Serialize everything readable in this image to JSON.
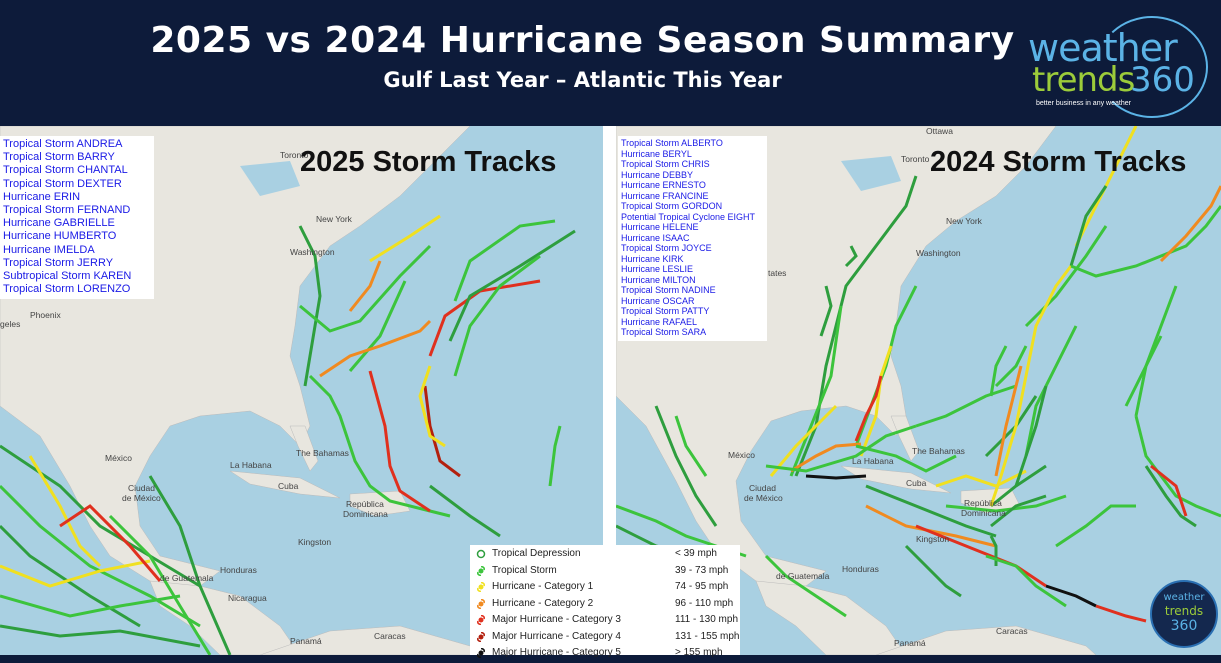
{
  "header": {
    "title": "2025 vs 2024 Hurricane Season Summary",
    "subtitle": "Gulf Last Year – Atlantic This Year"
  },
  "logo": {
    "word1": "weather",
    "word2": "trends",
    "word3": "360",
    "tagline": "better business in any weather"
  },
  "map_2025": {
    "title": "2025 Storm Tracks",
    "storms": [
      "Tropical Storm ANDREA",
      "Tropical Storm BARRY",
      "Tropical Storm CHANTAL",
      "Tropical Storm DEXTER",
      "Hurricane ERIN",
      "Tropical Storm FERNAND",
      "Hurricane GABRIELLE",
      "Hurricane HUMBERTO",
      "Hurricane IMELDA",
      "Tropical Storm JERRY",
      "Subtropical Storm KAREN",
      "Tropical Storm LORENZO"
    ],
    "places": {
      "toronto": "Toronto",
      "newyork": "New York",
      "washington": "Washington",
      "phoenix": "Phoenix",
      "angeles": "geles",
      "mexico": "México",
      "ciudad1": "Ciudad",
      "ciudad2": "de México",
      "guatemala": "de Guatemala",
      "habana": "La Habana",
      "bahamas": "The Bahamas",
      "cuba": "Cuba",
      "kingston": "Kingston",
      "dominicana1": "República",
      "dominicana2": "Dominicana",
      "honduras": "Honduras",
      "nicaragua": "Nicaragua",
      "caracas": "Caracas",
      "panama": "Panamá"
    }
  },
  "map_2024": {
    "title": "2024 Storm Tracks",
    "storms": [
      "Tropical Storm ALBERTO",
      "Hurricane BERYL",
      "Tropical Storm CHRIS",
      "Hurricane DEBBY",
      "Hurricane ERNESTO",
      "Hurricane FRANCINE",
      "Tropical Storm GORDON",
      "Potential Tropical Cyclone EIGHT",
      "Hurricane HELENE",
      "Hurricane ISAAC",
      "Tropical Storm JOYCE",
      "Hurricane KIRK",
      "Hurricane LESLIE",
      "Hurricane MILTON",
      "Tropical Storm NADINE",
      "Hurricane OSCAR",
      "Tropical Storm PATTY",
      "Hurricane RAFAEL",
      "Tropical Storm SARA"
    ],
    "places": {
      "ottawa": "Ottawa",
      "toronto": "Toronto",
      "newyork": "New York",
      "washington": "Washington",
      "states": "tates",
      "mexico": "México",
      "ciudad1": "Ciudad",
      "ciudad2": "de México",
      "guatemala": "de Guatemala",
      "habana": "La Habana",
      "bahamas": "The Bahamas",
      "cuba": "Cuba",
      "dominicana1": "República",
      "dominicana2": "Dominicana",
      "kingston": "Kingston",
      "honduras": "Honduras",
      "caracas": "Caracas",
      "panama": "Panamá"
    }
  },
  "legend": {
    "items": [
      {
        "label": "Tropical Depression",
        "speed": "< 39 mph",
        "color": "#2e9e3e",
        "symbol": "circle"
      },
      {
        "label": "Tropical Storm",
        "speed": "39 - 73 mph",
        "color": "#3cc43c",
        "symbol": "swirl"
      },
      {
        "label": "Hurricane - Category 1",
        "speed": "74 - 95 mph",
        "color": "#f0e020",
        "symbol": "swirl"
      },
      {
        "label": "Hurricane - Category 2",
        "speed": "96 - 110 mph",
        "color": "#f08a20",
        "symbol": "swirl"
      },
      {
        "label": "Major Hurricane - Category 3",
        "speed": "111 - 130 mph",
        "color": "#e0301e",
        "symbol": "swirl"
      },
      {
        "label": "Major Hurricane - Category 4",
        "speed": "131 - 155 mph",
        "color": "#b3200e",
        "symbol": "swirl"
      },
      {
        "label": "Major Hurricane - Category 5",
        "speed": "> 155 mph",
        "color": "#111111",
        "symbol": "swirl"
      }
    ]
  },
  "badge": {
    "word1": "weather",
    "word2": "trends",
    "word3": "360"
  }
}
